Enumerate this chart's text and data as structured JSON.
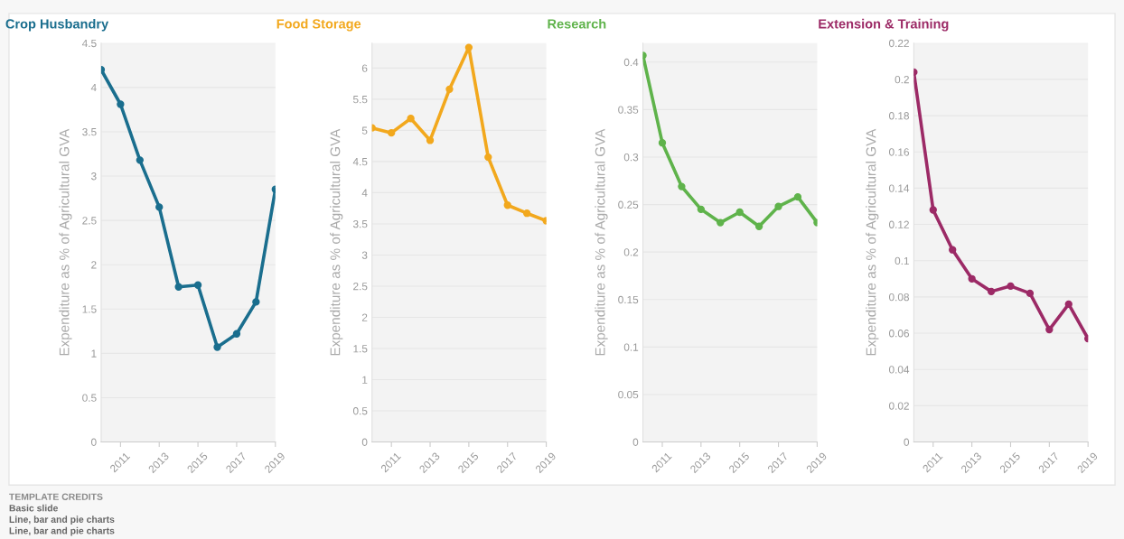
{
  "chart_data": [
    {
      "type": "line",
      "title": "Crop Husbandry",
      "ylabel": "Expenditure as % of Agricultural GVA",
      "x": [
        2010,
        2011,
        2012,
        2013,
        2014,
        2015,
        2016,
        2017,
        2018,
        2019
      ],
      "xlim": [
        2010,
        2019
      ],
      "xticks": [
        2011,
        2013,
        2015,
        2017,
        2019
      ],
      "ylim": [
        0,
        4.5
      ],
      "yticks": [
        0,
        {
          "value": 0.5,
          "label": "0.5"
        },
        1,
        {
          "value": 1.5,
          "label": "1.5"
        },
        2,
        {
          "value": 2.5,
          "label": "2.5"
        },
        3,
        {
          "value": 3.5,
          "label": "3.5"
        },
        4,
        {
          "value": 4.5,
          "label": "4.5"
        }
      ],
      "grid": "y",
      "marker": "circle",
      "line_style": "solid",
      "series": [
        {
          "color": "#1a6e8e",
          "values": [
            4.2,
            3.81,
            3.18,
            2.65,
            1.75,
            1.77,
            1.07,
            1.22,
            1.58,
            2.85
          ]
        }
      ],
      "annotations": [
        "TEMPLATE CREDITS",
        "Basic slide",
        "Line, bar and pie charts",
        "Line, bar and pie charts"
      ]
    },
    {
      "type": "line",
      "title": "Food Storage",
      "ylabel": "Expenditure as % of Agricultural GVA",
      "x": [
        2010,
        2011,
        2012,
        2013,
        2014,
        2015,
        2016,
        2017,
        2018,
        2019
      ],
      "xlim": [
        2010,
        2019
      ],
      "xticks": [
        2011,
        2013,
        2015,
        2017,
        2019
      ],
      "ylim": [
        0,
        6.4
      ],
      "yticks": [
        0,
        {
          "value": 0.5,
          "label": "0.5"
        },
        1,
        {
          "value": 1.5,
          "label": "1.5"
        },
        2,
        {
          "value": 2.5,
          "label": "2.5"
        },
        3,
        {
          "value": 3.5,
          "label": "3.5"
        },
        4,
        {
          "value": 4.5,
          "label": "4.5"
        },
        5,
        {
          "value": 5.5,
          "label": "5.5"
        },
        6
      ],
      "grid": "y",
      "marker": "circle",
      "line_style": "solid",
      "series": [
        {
          "color": "#f2a81d",
          "values": [
            5.04,
            4.96,
            5.19,
            4.84,
            5.66,
            6.33,
            4.57,
            3.8,
            3.67,
            3.55
          ]
        }
      ]
    },
    {
      "type": "line",
      "title": "Research",
      "ylabel": "Expenditure as % of Agricultural GVA",
      "x": [
        2010,
        2011,
        2012,
        2013,
        2014,
        2015,
        2016,
        2017,
        2018,
        2019
      ],
      "xlim": [
        2010,
        2019
      ],
      "xticks": [
        2011,
        2013,
        2015,
        2017,
        2019
      ],
      "ylim": [
        0,
        0.42
      ],
      "yticks": [
        0,
        0.05,
        0.1,
        0.15,
        0.2,
        0.25,
        0.3,
        0.35,
        0.4
      ],
      "grid": "y",
      "marker": "circle",
      "line_style": "solid",
      "series": [
        {
          "color": "#5fb34b",
          "values": [
            0.407,
            0.315,
            0.269,
            0.245,
            0.231,
            0.242,
            0.227,
            0.248,
            0.258,
            0.231
          ]
        }
      ]
    },
    {
      "type": "line",
      "title": "Extension & Training",
      "ylabel": "Expenditure as % of Agricultural GVA",
      "x": [
        2010,
        2011,
        2012,
        2013,
        2014,
        2015,
        2016,
        2017,
        2018,
        2019
      ],
      "xlim": [
        2010,
        2019
      ],
      "xticks": [
        2011,
        2013,
        2015,
        2017,
        2019
      ],
      "ylim": [
        0,
        0.22
      ],
      "yticks": [
        0,
        0.02,
        0.04,
        0.06,
        0.08,
        0.1,
        0.12,
        0.14,
        0.16,
        0.18,
        0.2,
        0.22
      ],
      "grid": "y",
      "marker": "circle",
      "line_style": "solid",
      "series": [
        {
          "color": "#9c2a66",
          "values": [
            0.204,
            0.128,
            0.106,
            0.09,
            0.083,
            0.086,
            0.082,
            0.062,
            0.076,
            0.057
          ]
        }
      ]
    }
  ]
}
